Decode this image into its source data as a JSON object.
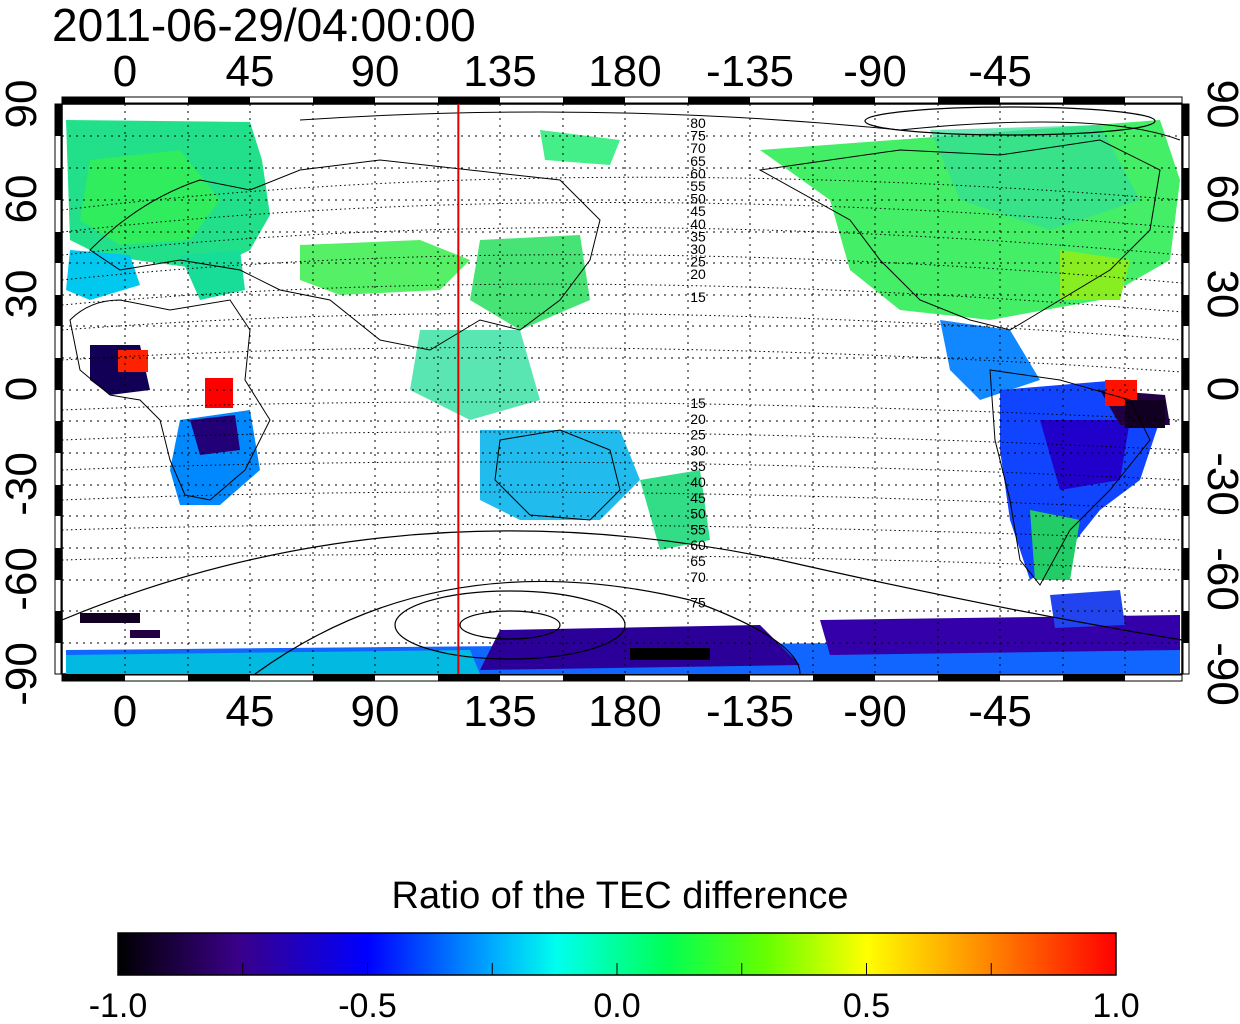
{
  "title": "2011-06-29/04:00:00",
  "map": {
    "top_lon_labels": [
      "0",
      "45",
      "90",
      "135",
      "180",
      "-135",
      "-90",
      "-45"
    ],
    "bottom_lon_labels": [
      "0",
      "45",
      "90",
      "135",
      "180",
      "-135",
      "-90",
      "-45"
    ],
    "left_lat_labels": [
      "90",
      "60",
      "30",
      "0",
      "-30",
      "-60",
      "-90"
    ],
    "right_lat_labels": [
      "90",
      "60",
      "30",
      "0",
      "-30",
      "-60",
      "-90"
    ],
    "marker_longitude": 120,
    "marker_color": "#e00000",
    "north_contour_labels": [
      "80",
      "75",
      "70",
      "65",
      "60",
      "55",
      "50",
      "45",
      "40",
      "35",
      "30",
      "25",
      "20",
      "15"
    ],
    "south_contour_labels": [
      "15",
      "20",
      "25",
      "30",
      "35",
      "40",
      "45",
      "50",
      "55",
      "60",
      "65",
      "70",
      "75"
    ]
  },
  "colorbar": {
    "title": "Ratio of the TEC difference",
    "tick_labels": [
      "-1.0",
      "-0.5",
      "0.0",
      "0.5",
      "1.0"
    ],
    "range": [
      -1.0,
      1.0
    ]
  }
}
